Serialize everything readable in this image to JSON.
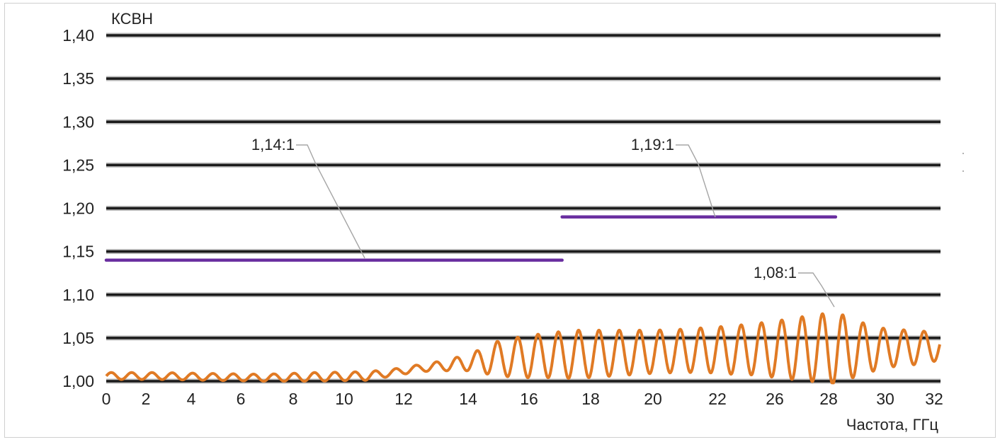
{
  "chart_data": {
    "type": "line",
    "title": "",
    "ylabel": "КСВН",
    "xlabel": "Частота, ГГц",
    "ylim": [
      1.0,
      1.4
    ],
    "xlim": [
      0,
      32
    ],
    "y_ticks": [
      "1,00",
      "1,05",
      "1,10",
      "1,15",
      "1,20",
      "1,25",
      "1,30",
      "1,35",
      "1,40"
    ],
    "y_tick_values": [
      1.0,
      1.05,
      1.1,
      1.15,
      1.2,
      1.25,
      1.3,
      1.35,
      1.4
    ],
    "x_ticks": [
      "0",
      "2",
      "4",
      "6",
      "8",
      "10",
      "12",
      "14",
      "16",
      "18",
      "20",
      "22",
      "26",
      "28",
      "30",
      "32"
    ],
    "grid": true,
    "limit_lines": [
      {
        "x_from": 0,
        "x_to": 17.5,
        "value": 1.14,
        "label": "1,14:1",
        "color": "#6a2fa0"
      },
      {
        "x_from": 17.5,
        "x_to": 28,
        "value": 1.19,
        "label": "1,19:1",
        "color": "#6a2fa0"
      }
    ],
    "series": [
      {
        "color": "#e07a24",
        "x": [
          0,
          2,
          4,
          6,
          8,
          10,
          11,
          12,
          13,
          14,
          15,
          16,
          17,
          18,
          19,
          20,
          21,
          22,
          23,
          24,
          25,
          26,
          27,
          28,
          29,
          30,
          31,
          32
        ],
        "y_mean": [
          1.006,
          1.006,
          1.005,
          1.004,
          1.005,
          1.006,
          1.01,
          1.015,
          1.018,
          1.022,
          1.026,
          1.028,
          1.03,
          1.031,
          1.032,
          1.033,
          1.034,
          1.035,
          1.036,
          1.036,
          1.037,
          1.037,
          1.038,
          1.038,
          1.038,
          1.038,
          1.039,
          1.04
        ],
        "y_amplitude": [
          0.004,
          0.004,
          0.004,
          0.004,
          0.005,
          0.005,
          0.004,
          0.004,
          0.006,
          0.01,
          0.02,
          0.024,
          0.026,
          0.028,
          0.027,
          0.026,
          0.025,
          0.025,
          0.026,
          0.028,
          0.03,
          0.034,
          0.038,
          0.042,
          0.03,
          0.022,
          0.02,
          0.016
        ]
      }
    ],
    "annotations": [
      {
        "text": "1,08:1",
        "x": 28.1,
        "y": 1.08
      }
    ]
  }
}
